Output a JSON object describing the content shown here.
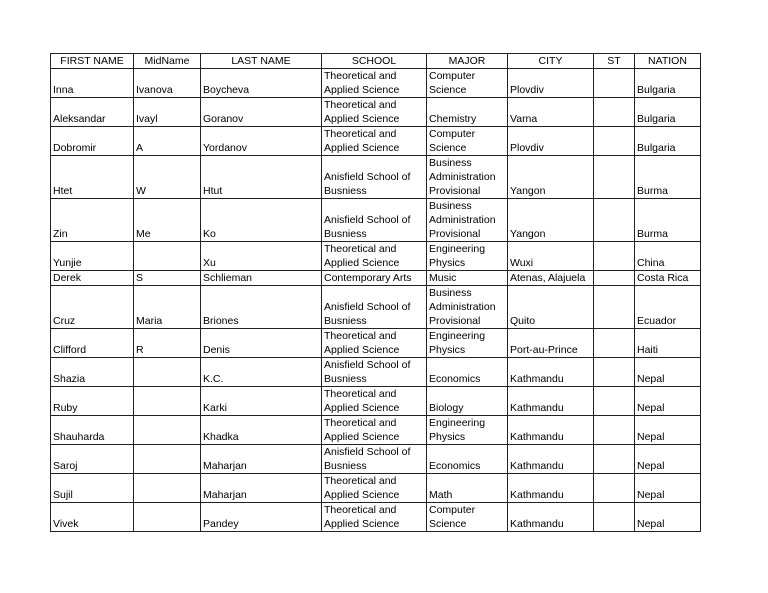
{
  "headers": [
    "FIRST NAME",
    "MidName",
    "LAST NAME",
    "SCHOOL",
    "MAJOR",
    "CITY",
    "ST",
    "NATION"
  ],
  "rows": [
    [
      "Inna",
      "Ivanova",
      "Boycheva",
      "Theoretical and Applied Science",
      "Computer Science",
      "Plovdiv",
      "",
      "Bulgaria"
    ],
    [
      "Aleksandar",
      "Ivayl",
      "Goranov",
      "Theoretical and Applied Science",
      "Chemistry",
      "Varna",
      "",
      "Bulgaria"
    ],
    [
      "Dobromir",
      "A",
      "Yordanov",
      "Theoretical and Applied Science",
      "Computer Science",
      "Plovdiv",
      "",
      "Bulgaria"
    ],
    [
      "Htet",
      "W",
      "Htut",
      "Anisfield School of Busniess",
      "Business Administration Provisional",
      "Yangon",
      "",
      "Burma"
    ],
    [
      "Zin",
      "Me",
      "Ko",
      "Anisfield School of Busniess",
      "Business Administration Provisional",
      "Yangon",
      "",
      "Burma"
    ],
    [
      "Yunjie",
      "",
      "Xu",
      "Theoretical and Applied Science",
      "Engineering Physics",
      "Wuxi",
      "",
      "China"
    ],
    [
      "Derek",
      "S",
      "Schlieman",
      "Contemporary Arts",
      "Music",
      "Atenas, Alajuela",
      "",
      "Costa Rica"
    ],
    [
      "Cruz",
      "Maria",
      "Briones",
      "Anisfield School of Busniess",
      "Business Administration Provisional",
      "Quito",
      "",
      "Ecuador"
    ],
    [
      "Clifford",
      "R",
      "Denis",
      "Theoretical and Applied Science",
      "Engineering Physics",
      "Port-au-Prince",
      "",
      "Haiti"
    ],
    [
      "Shazia",
      "",
      "K.C.",
      "Anisfield School of Busniess",
      "Economics",
      "Kathmandu",
      "",
      "Nepal"
    ],
    [
      "Ruby",
      "",
      "Karki",
      "Theoretical and Applied Science",
      "Biology",
      "Kathmandu",
      "",
      "Nepal"
    ],
    [
      "Shauharda",
      "",
      "Khadka",
      "Theoretical and Applied Science",
      "Engineering Physics",
      "Kathmandu",
      "",
      "Nepal"
    ],
    [
      "Saroj",
      "",
      "Maharjan",
      "Anisfield School of Busniess",
      "Economics",
      "Kathmandu",
      "",
      "Nepal"
    ],
    [
      "Sujil",
      "",
      "Maharjan",
      "Theoretical and Applied Science",
      "Math",
      "Kathmandu",
      "",
      "Nepal"
    ],
    [
      "Vivek",
      "",
      "Pandey",
      "Theoretical and Applied Science",
      "Computer Science",
      "Kathmandu",
      "",
      "Nepal"
    ]
  ]
}
